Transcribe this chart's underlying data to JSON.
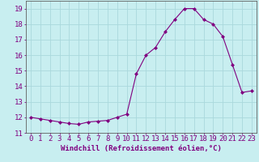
{
  "hours": [
    0,
    1,
    2,
    3,
    4,
    5,
    6,
    7,
    8,
    9,
    10,
    11,
    12,
    13,
    14,
    15,
    16,
    17,
    18,
    19,
    20,
    21,
    22,
    23
  ],
  "values": [
    12.0,
    11.9,
    11.8,
    11.7,
    11.6,
    11.55,
    11.7,
    11.75,
    11.8,
    12.0,
    12.2,
    14.8,
    16.0,
    16.5,
    17.5,
    18.3,
    19.0,
    19.0,
    18.3,
    18.0,
    17.2,
    15.4,
    13.6,
    13.7
  ],
  "title": "",
  "xlabel": "Windchill (Refroidissement éolien,°C)",
  "ylabel": "",
  "ylim": [
    11,
    19.5
  ],
  "yticks": [
    11,
    12,
    13,
    14,
    15,
    16,
    17,
    18,
    19
  ],
  "xlim": [
    -0.5,
    23.5
  ],
  "line_color": "#800080",
  "marker": "D",
  "marker_size": 2.0,
  "bg_color": "#c8eef0",
  "grid_color": "#aad8dc",
  "axis_label_color": "#800080",
  "tick_label_color": "#800080",
  "xlabel_fontsize": 6.5,
  "tick_fontsize": 6.5,
  "linewidth": 0.8
}
